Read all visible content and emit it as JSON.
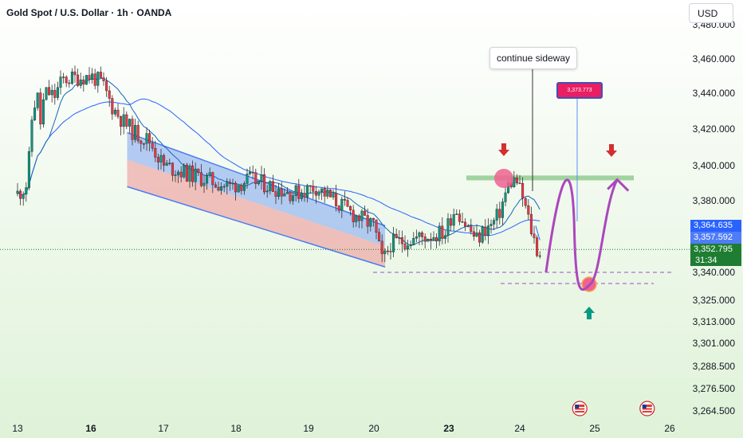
{
  "header": {
    "title": "Gold Spot / U.S. Dollar · 1h · OANDA",
    "currency": "USD"
  },
  "annotations": {
    "callout": "continue sideway",
    "target_price": "3,373.773"
  },
  "price_labels": {
    "sma_long": "3,364.635",
    "sma_short": "3,357.592",
    "last_price": "3,352.795",
    "countdown": "31:34"
  },
  "colors": {
    "up": "#089981",
    "down": "#f23645",
    "ma": "#2962ff",
    "channel_upper": "#4a7cf0",
    "channel_lower": "#ef9a9a",
    "resistance": "#8bc98b",
    "path": "#ab47bc",
    "arrow_down": "#d32f2f",
    "arrow_up": "#089981",
    "background_top": "#ffffff",
    "background_bottom": "#dff2d8"
  },
  "icons": [
    "down-arrow-icon",
    "up-arrow-icon",
    "us-flag-event-icon"
  ],
  "chart_data": {
    "type": "candlestick",
    "title": "Gold Spot / U.S. Dollar · 1h · OANDA",
    "xlabel": "",
    "ylabel": "",
    "x_ticks": [
      "13",
      "16",
      "17",
      "18",
      "19",
      "20",
      "23",
      "24",
      "25",
      "26"
    ],
    "x_ticks_bold": [
      "16",
      "23"
    ],
    "y_ticks": [
      "3,480.000",
      "3,460.000",
      "3,440.000",
      "3,420.000",
      "3,400.000",
      "3,380.000",
      "3,340.000",
      "3,325.000",
      "3,313.000",
      "3,301.000",
      "3,288.500",
      "3,276.500",
      "3,264.500"
    ],
    "y_range": [
      3264.5,
      3480
    ],
    "x_range": [
      13,
      26
    ],
    "price_path": [
      [
        13.0,
        3384
      ],
      [
        13.2,
        3386
      ],
      [
        13.4,
        3390
      ],
      [
        13.6,
        3428
      ],
      [
        13.8,
        3440
      ],
      [
        13.95,
        3422
      ],
      [
        14.1,
        3440
      ],
      [
        14.3,
        3440
      ],
      [
        14.5,
        3438
      ],
      [
        14.7,
        3444
      ],
      [
        14.85,
        3448
      ],
      [
        16.0,
        3450
      ],
      [
        16.15,
        3446
      ],
      [
        16.3,
        3432
      ],
      [
        16.45,
        3424
      ],
      [
        16.6,
        3418
      ],
      [
        16.8,
        3414
      ],
      [
        17.0,
        3400
      ],
      [
        17.3,
        3396
      ],
      [
        17.6,
        3392
      ],
      [
        17.9,
        3388
      ],
      [
        18.2,
        3392
      ],
      [
        18.5,
        3388
      ],
      [
        18.8,
        3384
      ],
      [
        19.1,
        3388
      ],
      [
        19.4,
        3380
      ],
      [
        19.7,
        3372
      ],
      [
        20.0,
        3366
      ],
      [
        20.2,
        3354
      ],
      [
        20.35,
        3346
      ],
      [
        20.5,
        3350
      ],
      [
        20.65,
        3356
      ],
      [
        22.7,
        3362
      ],
      [
        22.9,
        3362
      ],
      [
        23.1,
        3376
      ],
      [
        23.25,
        3366
      ],
      [
        23.4,
        3358
      ],
      [
        23.5,
        3364
      ],
      [
        23.6,
        3366
      ],
      [
        23.7,
        3372
      ],
      [
        23.85,
        3390
      ],
      [
        23.95,
        3392
      ],
      [
        24.05,
        3380
      ],
      [
        24.15,
        3364
      ],
      [
        24.25,
        3350
      ],
      [
        24.3,
        3352.8
      ]
    ],
    "overlays": [
      {
        "name": "sma_short",
        "value": 3357.592
      },
      {
        "name": "sma_long",
        "value": 3364.635
      }
    ],
    "levels": {
      "resistance": 3393,
      "support_1": 3340,
      "support_2": 3334,
      "last_price": 3352.795,
      "target": 3373.773
    },
    "projection": [
      [
        24.35,
        3340
      ],
      [
        24.6,
        3373
      ],
      [
        24.95,
        3334
      ],
      [
        25.3,
        3392
      ]
    ],
    "channel": {
      "upper": [
        [
          16.5,
          3418
        ],
        [
          20.45,
          3366
        ]
      ],
      "lower": [
        [
          16.5,
          3388
        ],
        [
          20.45,
          3343
        ]
      ]
    },
    "event_markers": [
      24.8,
      25.7
    ],
    "grid": false,
    "legend": "none"
  }
}
